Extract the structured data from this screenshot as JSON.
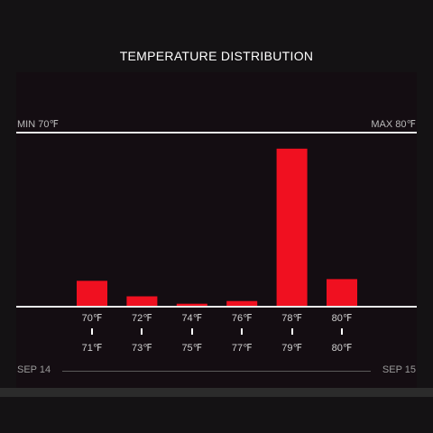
{
  "chart_data": {
    "type": "bar",
    "title": "TEMPERATURE DISTRIBUTION",
    "min_label": "MIN 70℉",
    "max_label": "MAX 80℉",
    "bins": [
      {
        "low": "70℉",
        "high": "71℉",
        "value": 0.145
      },
      {
        "low": "72℉",
        "high": "73℉",
        "value": 0.055
      },
      {
        "low": "74℉",
        "high": "75℉",
        "value": 0.012
      },
      {
        "low": "76℉",
        "high": "77℉",
        "value": 0.028
      },
      {
        "low": "78℉",
        "high": "79℉",
        "value": 0.912
      },
      {
        "low": "80℉",
        "high": "80℉",
        "value": 0.155
      }
    ],
    "ylim": [
      0,
      1
    ],
    "bar_color": "#f01020",
    "date_start": "SEP 14",
    "date_end": "SEP 15"
  }
}
